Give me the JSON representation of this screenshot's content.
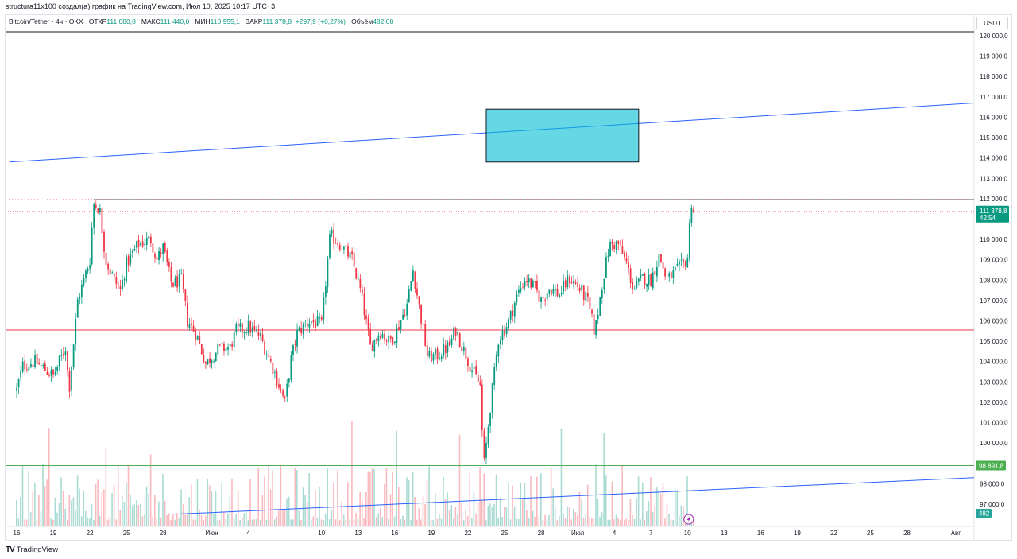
{
  "caption": "structura11x100 создал(а) график на TradingView.com, Июл 10, 2025 10:17 UTC+3",
  "legend": {
    "symbol": "Bitcoin/Tether · 4ч · OKX",
    "open_label": "ОТКР",
    "open": "111 080,8",
    "high_label": "МАКС",
    "high": "111 440,0",
    "low_label": "МИН",
    "low": "110 955,1",
    "close_label": "ЗАКР",
    "close": "111 378,8",
    "change": "+297,9 (+0,27%)",
    "volume_label": "Объём",
    "volume": "482,08"
  },
  "currency": "USDT",
  "footer": {
    "logo": "TV",
    "brand": "TradingView"
  },
  "colors": {
    "up": "#089981",
    "down": "#f23645",
    "trendline": "#2962ff",
    "zone": "#00bcd4",
    "support": "#4caf50"
  },
  "chart_data": {
    "type": "candlestick",
    "y_range": [
      96500,
      120400
    ],
    "y_ticks": [
      {
        "v": 120000,
        "label": "120 000,0"
      },
      {
        "v": 119000,
        "label": "119 000,0"
      },
      {
        "v": 118000,
        "label": "118 000,0"
      },
      {
        "v": 117000,
        "label": "117 000,0"
      },
      {
        "v": 116000,
        "label": "116 000,0"
      },
      {
        "v": 115000,
        "label": "115 000,0"
      },
      {
        "v": 114000,
        "label": "114 000,0"
      },
      {
        "v": 113000,
        "label": "113 000,0"
      },
      {
        "v": 112000,
        "label": "112 000,0"
      },
      {
        "v": 110000,
        "label": "110 000,0"
      },
      {
        "v": 109000,
        "label": "109 000,0"
      },
      {
        "v": 108000,
        "label": "108 000,0"
      },
      {
        "v": 107000,
        "label": "107 000,0"
      },
      {
        "v": 106000,
        "label": "106 000,0"
      },
      {
        "v": 105000,
        "label": "105 000,0"
      },
      {
        "v": 104000,
        "label": "104 000,0"
      },
      {
        "v": 103000,
        "label": "103 000,0"
      },
      {
        "v": 102000,
        "label": "102 000,0"
      },
      {
        "v": 101000,
        "label": "101 000,0"
      },
      {
        "v": 100000,
        "label": "100 000,0"
      },
      {
        "v": 98000,
        "label": "98 000,0"
      },
      {
        "v": 97000,
        "label": "97 000,0"
      }
    ],
    "x_ticks": [
      {
        "d": 0,
        "label": "16"
      },
      {
        "d": 3,
        "label": "19"
      },
      {
        "d": 6,
        "label": "22"
      },
      {
        "d": 9,
        "label": "25"
      },
      {
        "d": 12,
        "label": "28"
      },
      {
        "d": 16,
        "label": "Июн"
      },
      {
        "d": 19,
        "label": "4"
      },
      {
        "d": 25,
        "label": "10"
      },
      {
        "d": 28,
        "label": "13"
      },
      {
        "d": 31,
        "label": "16"
      },
      {
        "d": 34,
        "label": "19"
      },
      {
        "d": 37,
        "label": "22"
      },
      {
        "d": 40,
        "label": "25"
      },
      {
        "d": 43,
        "label": "28"
      },
      {
        "d": 46,
        "label": "Июл"
      },
      {
        "d": 49,
        "label": "4"
      },
      {
        "d": 52,
        "label": "7"
      },
      {
        "d": 55,
        "label": "10"
      },
      {
        "d": 58,
        "label": "13"
      },
      {
        "d": 61,
        "label": "16"
      },
      {
        "d": 64,
        "label": "19"
      },
      {
        "d": 67,
        "label": "22"
      },
      {
        "d": 70,
        "label": "25"
      },
      {
        "d": 73,
        "label": "28"
      },
      {
        "d": 77,
        "label": "Авг"
      }
    ],
    "path_anchors": [
      [
        0,
        102600
      ],
      [
        0.5,
        103800
      ],
      [
        1.5,
        104000
      ],
      [
        3,
        103300
      ],
      [
        4,
        104700
      ],
      [
        4.3,
        102600
      ],
      [
        5,
        107000
      ],
      [
        6,
        109000
      ],
      [
        6.3,
        111800
      ],
      [
        6.8,
        111500
      ],
      [
        7.3,
        109000
      ],
      [
        8,
        108000
      ],
      [
        8.5,
        107500
      ],
      [
        9,
        108800
      ],
      [
        10,
        109800
      ],
      [
        11,
        110000
      ],
      [
        11.5,
        109000
      ],
      [
        12,
        109600
      ],
      [
        12.7,
        107800
      ],
      [
        13.5,
        108000
      ],
      [
        14,
        106000
      ],
      [
        14.7,
        105400
      ],
      [
        15.5,
        103900
      ],
      [
        16.5,
        104600
      ],
      [
        17.5,
        104700
      ],
      [
        18,
        105500
      ],
      [
        19,
        105700
      ],
      [
        20,
        105200
      ],
      [
        21,
        103700
      ],
      [
        22,
        102000
      ],
      [
        22.5,
        104100
      ],
      [
        23,
        105400
      ],
      [
        24,
        106000
      ],
      [
        25,
        105800
      ],
      [
        25.7,
        110200
      ],
      [
        26.5,
        109800
      ],
      [
        27.5,
        109000
      ],
      [
        28.3,
        107200
      ],
      [
        29,
        104700
      ],
      [
        29.8,
        105500
      ],
      [
        30.5,
        105000
      ],
      [
        31,
        105300
      ],
      [
        32,
        106800
      ],
      [
        32.5,
        108500
      ],
      [
        33,
        106700
      ],
      [
        33.7,
        104200
      ],
      [
        34.5,
        104300
      ],
      [
        35.5,
        104800
      ],
      [
        36,
        105600
      ],
      [
        36.5,
        104800
      ],
      [
        37.2,
        103800
      ],
      [
        38,
        102800
      ],
      [
        38.3,
        98800
      ],
      [
        38.8,
        101600
      ],
      [
        39.5,
        105100
      ],
      [
        40.3,
        105900
      ],
      [
        41,
        107200
      ],
      [
        41.7,
        108100
      ],
      [
        42.5,
        107600
      ],
      [
        43,
        107000
      ],
      [
        43.7,
        107600
      ],
      [
        44.5,
        107300
      ],
      [
        45.3,
        108100
      ],
      [
        46,
        107700
      ],
      [
        46.8,
        107000
      ],
      [
        47.4,
        105400
      ],
      [
        48,
        107800
      ],
      [
        48.6,
        109700
      ],
      [
        49.3,
        109800
      ],
      [
        50,
        108800
      ],
      [
        50.6,
        107500
      ],
      [
        51.3,
        108100
      ],
      [
        52,
        108000
      ],
      [
        52.7,
        109200
      ],
      [
        53.3,
        108000
      ],
      [
        54,
        108400
      ],
      [
        54.7,
        108800
      ],
      [
        55,
        109100
      ],
      [
        55.3,
        111900
      ],
      [
        55.6,
        111380
      ]
    ],
    "volume_bars": 300,
    "trendline_upper": {
      "x1": -1,
      "y1": 113800,
      "x2": 77.5,
      "y2": 116700
    },
    "trendline_lower": {
      "x1": 10,
      "y1": 96500,
      "x2": 77.5,
      "y2": 98300
    },
    "resistance_level": 111950,
    "mid_level": 105550,
    "support_level": 98891.8,
    "zone": {
      "d1": 38.5,
      "d2": 51,
      "y_top": 116400,
      "y_bottom": 113800
    },
    "price_tag": {
      "value": "111 378,8",
      "timer": "42:54",
      "price": 111378.8
    },
    "support_tag": {
      "value": "98 891,8"
    },
    "volume_tag": {
      "value": "482"
    }
  }
}
